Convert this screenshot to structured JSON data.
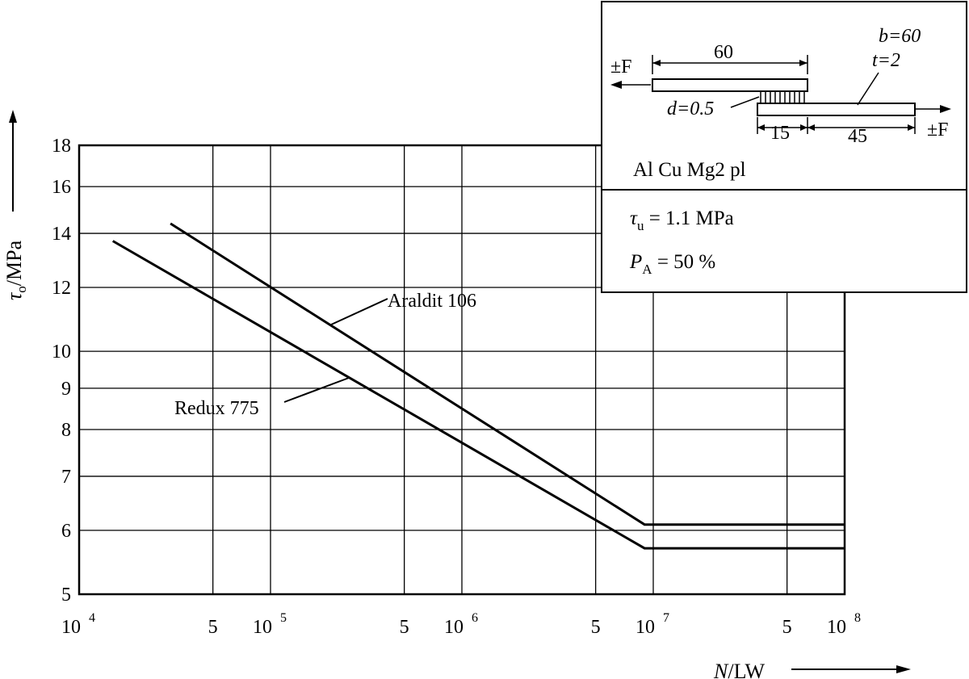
{
  "chart_data": {
    "type": "line",
    "x_scale": "log",
    "y_scale": "log",
    "xlim": [
      10000,
      100000000
    ],
    "ylim": [
      5,
      18
    ],
    "grid": true,
    "xlabel": {
      "var": "N",
      "unit": "/LW"
    },
    "ylabel": {
      "var": "τ",
      "sub": "o",
      "unit": "/MPa"
    },
    "y_ticks": [
      5,
      6,
      7,
      8,
      9,
      10,
      12,
      14,
      16,
      18
    ],
    "x_ticks": [
      {
        "value": 10000,
        "label": "10",
        "exp": "4"
      },
      {
        "value": 50000,
        "label": "5",
        "exp": ""
      },
      {
        "value": 100000,
        "label": "10",
        "exp": "5"
      },
      {
        "value": 500000,
        "label": "5",
        "exp": ""
      },
      {
        "value": 1000000,
        "label": "10",
        "exp": "6"
      },
      {
        "value": 5000000,
        "label": "5",
        "exp": ""
      },
      {
        "value": 10000000,
        "label": "10",
        "exp": "7"
      },
      {
        "value": 50000000,
        "label": "5",
        "exp": ""
      },
      {
        "value": 100000000,
        "label": "10",
        "exp": "8"
      }
    ],
    "series": [
      {
        "name": "Araldit 106",
        "points": [
          [
            30000,
            14.4
          ],
          [
            9000000,
            6.1
          ],
          [
            100000000,
            6.1
          ]
        ]
      },
      {
        "name": "Redux 775",
        "points": [
          [
            15000,
            13.7
          ],
          [
            9000000,
            5.7
          ],
          [
            100000000,
            5.7
          ]
        ]
      }
    ],
    "inset": {
      "material": "Al Cu Mg2 pl",
      "dims": {
        "overlap_len": "60",
        "force_left": "±F",
        "force_right": "±F",
        "width": "b=60",
        "thickness": "t=2",
        "adhesive": "d=0.5",
        "seg1": "15",
        "seg2": "45"
      },
      "tau_u": {
        "sym": "τ",
        "sub": "u",
        "value": " = 1.1 MPa"
      },
      "p_a": {
        "sym": "P",
        "sub": "A",
        "value": " = 50 %"
      }
    }
  }
}
